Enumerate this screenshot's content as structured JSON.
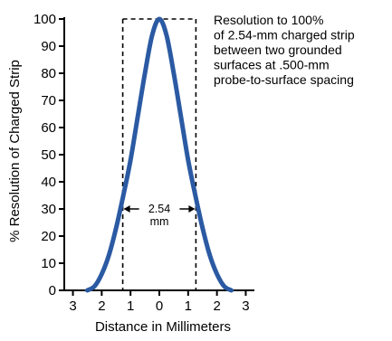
{
  "chart_data": {
    "type": "line",
    "xlabel": "Distance in Millimeters",
    "ylabel": "% Resolution of Charged Strip",
    "ylim": [
      0,
      100
    ],
    "xlim": [
      -3.3,
      3.3
    ],
    "yticks": [
      0,
      10,
      20,
      30,
      40,
      50,
      60,
      70,
      80,
      90,
      100
    ],
    "xticks": [
      {
        "value": -3,
        "label": "3"
      },
      {
        "value": -2,
        "label": "2"
      },
      {
        "value": -1,
        "label": "1"
      },
      {
        "value": 0,
        "label": "0"
      },
      {
        "value": 1,
        "label": "1"
      },
      {
        "value": 2,
        "label": "2"
      },
      {
        "value": 3,
        "label": "3"
      }
    ],
    "grid": false,
    "series": [
      {
        "color": "#2b5aa3",
        "x": [
          -2.5,
          -2.25,
          -2.0,
          -1.75,
          -1.5,
          -1.25,
          -1.0,
          -0.75,
          -0.5,
          -0.25,
          0.0,
          0.25,
          0.5,
          0.75,
          1.0,
          1.25,
          1.5,
          1.75,
          2.0,
          2.25,
          2.5
        ],
        "y": [
          0,
          1.5,
          6,
          13,
          23,
          35,
          48,
          64,
          80,
          94,
          100,
          94,
          80,
          64,
          48,
          35,
          23,
          13,
          6,
          1.5,
          0
        ]
      }
    ],
    "strip_box": {
      "x_left": -1.27,
      "x_right": 1.27,
      "top": 100
    },
    "annotations": {
      "strip_width_value": "2.54",
      "strip_width_unit": "mm",
      "note_lines": [
        "Resolution to 100%",
        "of 2.54-mm charged strip",
        "between two grounded",
        "surfaces at .500-mm",
        "probe-to-surface spacing"
      ]
    }
  }
}
